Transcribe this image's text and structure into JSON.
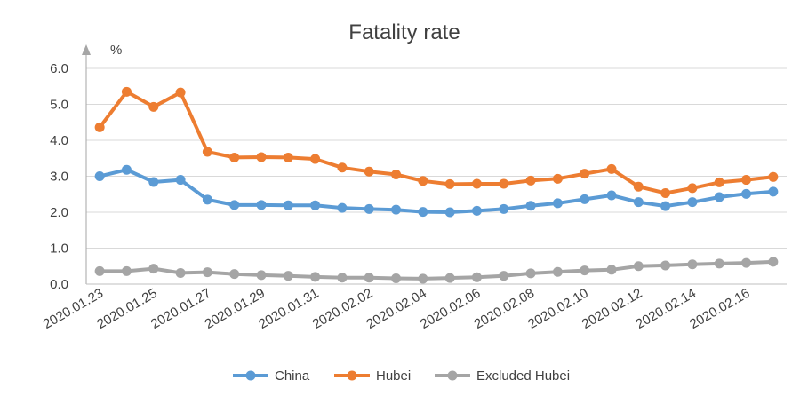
{
  "chart_data": {
    "type": "line",
    "title": "Fatality rate",
    "ylabel": "%",
    "xlabel": "",
    "ylim": [
      0,
      6
    ],
    "yticks": [
      "0.0",
      "1.0",
      "2.0",
      "3.0",
      "4.0",
      "5.0",
      "6.0"
    ],
    "grid": true,
    "legend_position": "bottom",
    "categories": [
      "2020.01.23",
      "2020.01.24",
      "2020.01.25",
      "2020.01.26",
      "2020.01.27",
      "2020.01.28",
      "2020.01.29",
      "2020.01.30",
      "2020.01.31",
      "2020.02.01",
      "2020.02.02",
      "2020.02.03",
      "2020.02.04",
      "2020.02.05",
      "2020.02.06",
      "2020.02.07",
      "2020.02.08",
      "2020.02.09",
      "2020.02.10",
      "2020.02.11",
      "2020.02.12",
      "2020.02.13",
      "2020.02.14",
      "2020.02.15",
      "2020.02.16",
      "2020.02.17"
    ],
    "xtick_labels": [
      "2020.01.23",
      "2020.01.25",
      "2020.01.27",
      "2020.01.29",
      "2020.01.31",
      "2020.02.02",
      "2020.02.04",
      "2020.02.06",
      "2020.02.08",
      "2020.02.10",
      "2020.02.12",
      "2020.02.14",
      "2020.02.16"
    ],
    "series": [
      {
        "name": "China",
        "color": "#5b9bd5",
        "values": [
          3.0,
          3.18,
          2.84,
          2.9,
          2.35,
          2.2,
          2.2,
          2.19,
          2.19,
          2.12,
          2.09,
          2.07,
          2.01,
          2.0,
          2.04,
          2.09,
          2.18,
          2.25,
          2.36,
          2.47,
          2.28,
          2.17,
          2.28,
          2.42,
          2.51,
          2.57
        ]
      },
      {
        "name": "Hubei",
        "color": "#ed7d31",
        "values": [
          4.36,
          5.35,
          4.93,
          5.33,
          3.68,
          3.52,
          3.53,
          3.52,
          3.48,
          3.24,
          3.13,
          3.05,
          2.87,
          2.78,
          2.79,
          2.79,
          2.88,
          2.93,
          3.07,
          3.2,
          2.71,
          2.53,
          2.67,
          2.83,
          2.9,
          2.98
        ]
      },
      {
        "name": "Excluded Hubei",
        "color": "#a5a5a5",
        "values": [
          0.36,
          0.36,
          0.43,
          0.31,
          0.33,
          0.28,
          0.25,
          0.23,
          0.2,
          0.18,
          0.18,
          0.16,
          0.15,
          0.17,
          0.19,
          0.23,
          0.3,
          0.34,
          0.38,
          0.4,
          0.5,
          0.52,
          0.55,
          0.57,
          0.59,
          0.62
        ]
      }
    ]
  }
}
